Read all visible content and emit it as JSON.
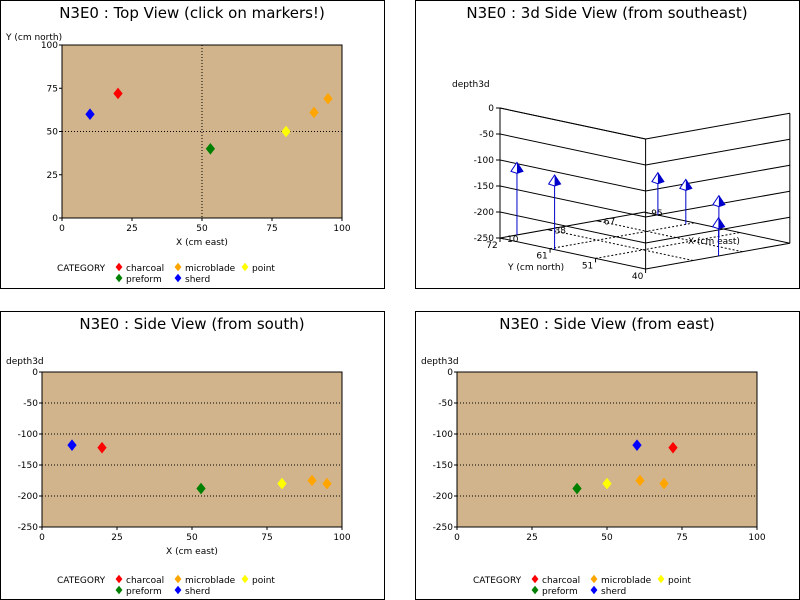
{
  "chart_data": [
    {
      "type": "scatter",
      "title": "N3E0 : Top View (click on markers!)",
      "xlabel": "X (cm east)",
      "ylabel": "Y (cm north)",
      "xlim": [
        0,
        100
      ],
      "ylim": [
        0,
        100
      ],
      "xticks": [
        0,
        25,
        50,
        75,
        100
      ],
      "yticks": [
        0,
        25,
        50,
        75,
        100
      ],
      "reference_lines": {
        "x": 50,
        "y": 50
      },
      "legend": {
        "title": "CATEGORY",
        "placement": "bottom",
        "rows": [
          [
            "charcoal",
            "microblade",
            "point"
          ],
          [
            "preform",
            "sherd"
          ]
        ]
      },
      "series": [
        {
          "name": "charcoal",
          "points": [
            [
              20,
              72
            ]
          ]
        },
        {
          "name": "microblade",
          "points": [
            [
              90,
              61
            ],
            [
              95,
              69
            ]
          ]
        },
        {
          "name": "point",
          "points": [
            [
              80,
              50
            ]
          ]
        },
        {
          "name": "preform",
          "points": [
            [
              53,
              40
            ]
          ]
        },
        {
          "name": "sherd",
          "points": [
            [
              10,
              60
            ]
          ]
        }
      ]
    },
    {
      "type": "scatter3d",
      "title": "N3E0 : 3d Side View (from southeast)",
      "zlabel": "depth3d",
      "xlabel": "X (cm east)",
      "ylabel": "Y (cm north)",
      "zticks": [
        0,
        -50,
        -100,
        -150,
        -200,
        -250
      ],
      "xticks": [
        10,
        38,
        67,
        95
      ],
      "yticks": [
        72,
        61,
        51,
        40
      ],
      "points": [
        {
          "x": 10,
          "y": 60,
          "z": -118
        },
        {
          "x": 20,
          "y": 72,
          "z": -122
        },
        {
          "x": 53,
          "y": 40,
          "z": -188
        },
        {
          "x": 80,
          "y": 50,
          "z": -180
        },
        {
          "x": 90,
          "y": 61,
          "z": -175
        },
        {
          "x": 95,
          "y": 69,
          "z": -180
        }
      ]
    },
    {
      "type": "scatter",
      "title": "N3E0 : Side View (from south)",
      "xlabel": "X (cm east)",
      "ylabel": "depth3d",
      "xlim": [
        0,
        100
      ],
      "ylim": [
        -250,
        0
      ],
      "xticks": [
        0,
        25,
        50,
        75,
        100
      ],
      "yticks": [
        0,
        -50,
        -100,
        -150,
        -200,
        -250
      ],
      "legend": {
        "title": "CATEGORY",
        "placement": "bottom",
        "rows": [
          [
            "charcoal",
            "microblade",
            "point"
          ],
          [
            "preform",
            "sherd"
          ]
        ]
      },
      "series": [
        {
          "name": "charcoal",
          "points": [
            [
              20,
              -122
            ]
          ]
        },
        {
          "name": "microblade",
          "points": [
            [
              90,
              -175
            ],
            [
              95,
              -180
            ]
          ]
        },
        {
          "name": "point",
          "points": [
            [
              80,
              -180
            ]
          ]
        },
        {
          "name": "preform",
          "points": [
            [
              53,
              -188
            ]
          ]
        },
        {
          "name": "sherd",
          "points": [
            [
              10,
              -118
            ]
          ]
        }
      ]
    },
    {
      "type": "scatter",
      "title": "N3E0 : Side View (from east)",
      "xlabel": "",
      "ylabel": "depth3d",
      "xlim": [
        0,
        100
      ],
      "ylim": [
        -250,
        0
      ],
      "xticks": [
        0,
        25,
        50,
        75,
        100
      ],
      "yticks": [
        0,
        -50,
        -100,
        -150,
        -200,
        -250
      ],
      "legend": {
        "title": "CATEGORY",
        "placement": "bottom",
        "rows": [
          [
            "charcoal",
            "microblade",
            "point"
          ],
          [
            "preform",
            "sherd"
          ]
        ]
      },
      "series": [
        {
          "name": "charcoal",
          "points": [
            [
              72,
              -122
            ]
          ]
        },
        {
          "name": "microblade",
          "points": [
            [
              61,
              -175
            ],
            [
              69,
              -180
            ]
          ]
        },
        {
          "name": "point",
          "points": [
            [
              50,
              -180
            ]
          ]
        },
        {
          "name": "preform",
          "points": [
            [
              40,
              -188
            ]
          ]
        },
        {
          "name": "sherd",
          "points": [
            [
              60,
              -118
            ]
          ]
        }
      ]
    }
  ],
  "colors": {
    "charcoal": "#ff0000",
    "microblade": "#ffa500",
    "point": "#ffff00",
    "preform": "#008000",
    "sherd": "#0000ff",
    "plot_background": "#d2b48c"
  }
}
